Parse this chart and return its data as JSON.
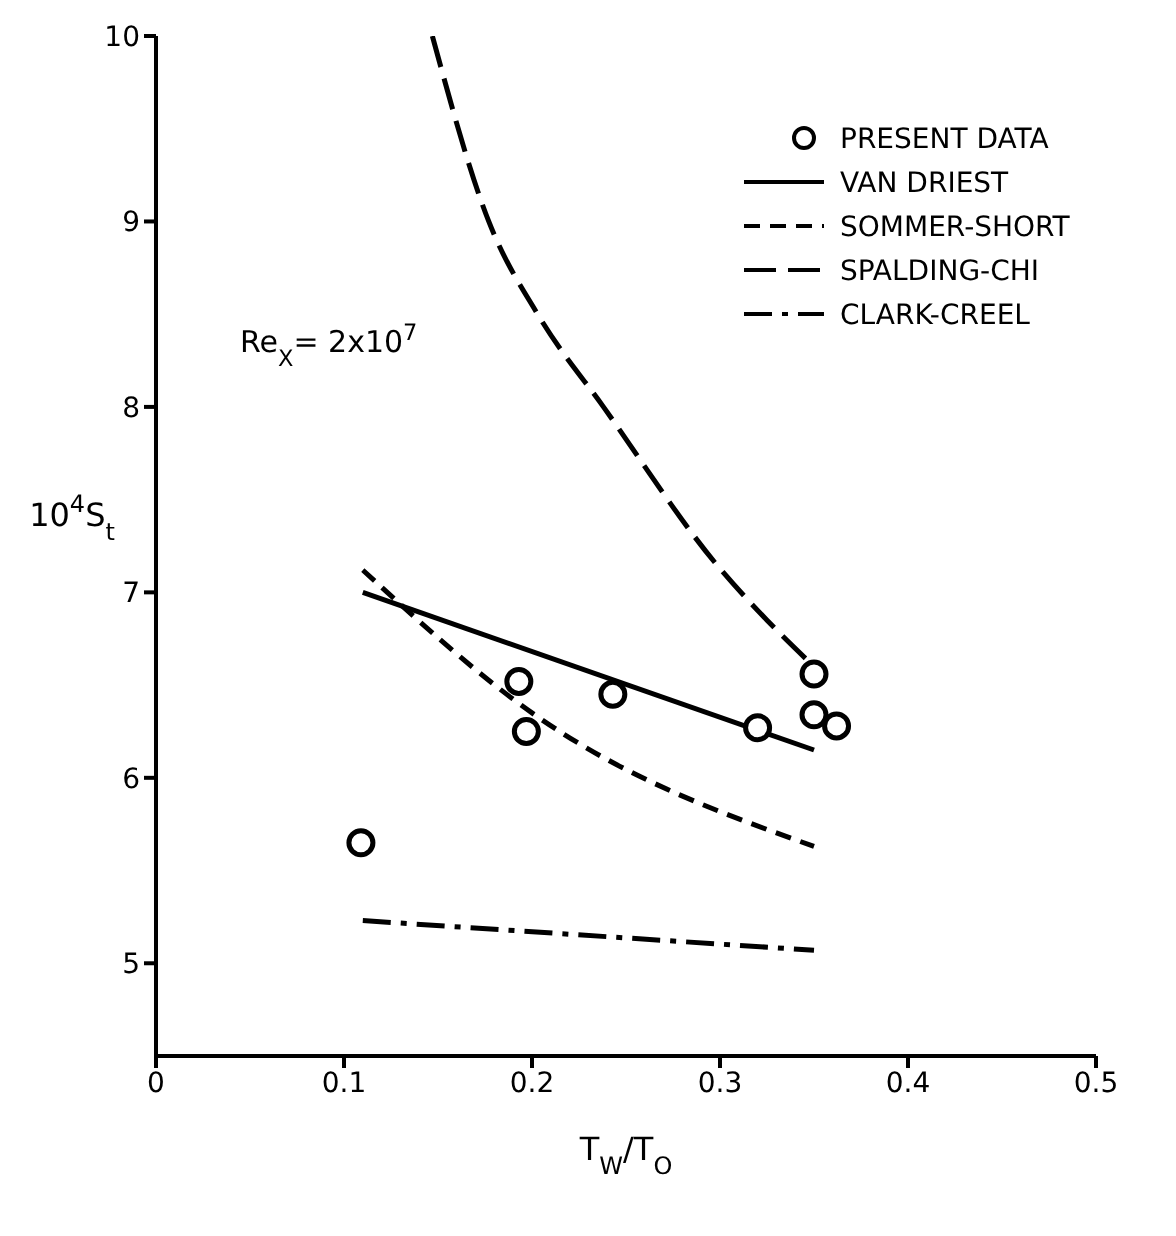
{
  "chart_data": {
    "type": "line",
    "xlabel": "T$_{W}$/T$_{O}$",
    "ylabel": "10$^{4}$S$_{t}$",
    "annotations": [
      "Re$_{X}$= 2x10$^{7}$"
    ],
    "xlim": [
      0,
      0.5
    ],
    "xticks": [
      0,
      0.1,
      0.2,
      0.3,
      0.4,
      0.5
    ],
    "ylim": [
      4.5,
      10
    ],
    "yticks": [
      5,
      6,
      7,
      8,
      9,
      10
    ],
    "grid": false,
    "legend": "top right",
    "series": [
      {
        "name": "PRESENT DATA",
        "type": "scatter",
        "marker": "circle",
        "color": "#000000",
        "x": [
          0.109,
          0.193,
          0.197,
          0.243,
          0.32,
          0.35,
          0.35,
          0.362
        ],
        "values": [
          5.65,
          6.52,
          6.25,
          6.45,
          6.27,
          6.56,
          6.34,
          6.28
        ]
      },
      {
        "name": "VAN DRIEST",
        "line_style": "solid",
        "color": "#000000",
        "x": [
          0.11,
          0.35
        ],
        "values": [
          7.0,
          6.15
        ]
      },
      {
        "name": "SOMMER-SHORT",
        "line_style": "dashed",
        "color": "#000000",
        "x": [
          0.11,
          0.2,
          0.35
        ],
        "values": [
          7.12,
          6.35,
          5.63
        ]
      },
      {
        "name": "SPALDING-CHI",
        "line_style": "longdash",
        "color": "#000000",
        "x": [
          0.147,
          0.177,
          0.203,
          0.238,
          0.299,
          0.325,
          0.35
        ],
        "values": [
          10,
          9,
          8.5,
          8,
          7.14,
          6.85,
          6.6
        ]
      },
      {
        "name": "CLARK-CREEL",
        "line_style": "dashdot",
        "color": "#000000",
        "x": [
          0.11,
          0.35
        ],
        "values": [
          5.23,
          5.07
        ]
      }
    ]
  }
}
